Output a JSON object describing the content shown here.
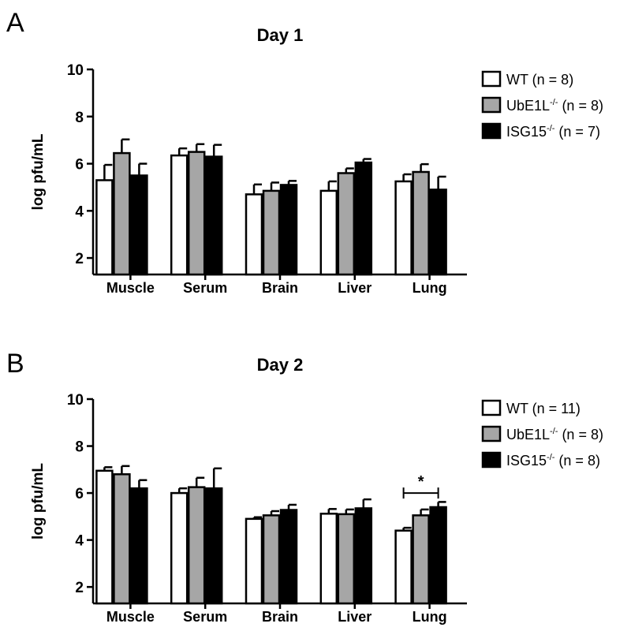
{
  "chart_data": [
    {
      "panel": "A",
      "type": "bar",
      "title": "Day 1",
      "ylabel": "log pfu/mL",
      "xlabel": "",
      "ylim": [
        1.3,
        10
      ],
      "yticks": [
        2,
        4,
        6,
        8,
        10
      ],
      "categories": [
        "Muscle",
        "Serum",
        "Brain",
        "Liver",
        "Lung"
      ],
      "legend_position": "right",
      "series": [
        {
          "name": "WT (n = 8)",
          "label": "WT",
          "sup": "",
          "n_text": " (n = 8)",
          "color": "#ffffff",
          "values": [
            5.3,
            6.35,
            4.7,
            4.85,
            5.25
          ],
          "errors": [
            0.65,
            0.3,
            0.42,
            0.4,
            0.3
          ]
        },
        {
          "name": "UbE1L-/- (n = 8)",
          "label": "UbE1L",
          "sup": "-/-",
          "n_text": " (n = 8)",
          "color": "#a6a6a6",
          "values": [
            6.45,
            6.5,
            4.85,
            5.6,
            5.65
          ],
          "errors": [
            0.58,
            0.33,
            0.35,
            0.2,
            0.33
          ]
        },
        {
          "name": "ISG15-/- (n = 7)",
          "label": "ISG15",
          "sup": "-/-",
          "n_text": " (n = 7)",
          "color": "#000000",
          "values": [
            5.5,
            6.3,
            5.1,
            6.05,
            4.9
          ],
          "errors": [
            0.5,
            0.5,
            0.17,
            0.15,
            0.55
          ]
        }
      ],
      "annotations": []
    },
    {
      "panel": "B",
      "type": "bar",
      "title": "Day 2",
      "ylabel": "log pfu/mL",
      "xlabel": "",
      "ylim": [
        1.3,
        10
      ],
      "yticks": [
        2,
        4,
        6,
        8,
        10
      ],
      "categories": [
        "Muscle",
        "Serum",
        "Brain",
        "Liver",
        "Lung"
      ],
      "legend_position": "right",
      "series": [
        {
          "name": "WT (n = 11)",
          "label": "WT",
          "sup": "",
          "n_text": " (n = 11)",
          "color": "#ffffff",
          "values": [
            6.95,
            6.0,
            4.9,
            5.12,
            4.4
          ],
          "errors": [
            0.15,
            0.2,
            0.07,
            0.2,
            0.12
          ]
        },
        {
          "name": "UbE1L-/- (n = 8)",
          "label": "UbE1L",
          "sup": "-/-",
          "n_text": " (n = 8)",
          "color": "#a6a6a6",
          "values": [
            6.8,
            6.25,
            5.05,
            5.1,
            5.05
          ],
          "errors": [
            0.35,
            0.4,
            0.18,
            0.2,
            0.25
          ]
        },
        {
          "name": "ISG15-/- (n = 8)",
          "label": "ISG15",
          "sup": "-/-",
          "n_text": " (n = 8)",
          "color": "#000000",
          "values": [
            6.2,
            6.2,
            5.28,
            5.35,
            5.4
          ],
          "errors": [
            0.35,
            0.85,
            0.22,
            0.38,
            0.22
          ]
        }
      ],
      "annotations": [
        {
          "text": "*",
          "category": "Lung",
          "from_series": 0,
          "to_series": 2,
          "y": 6.0
        }
      ]
    }
  ]
}
